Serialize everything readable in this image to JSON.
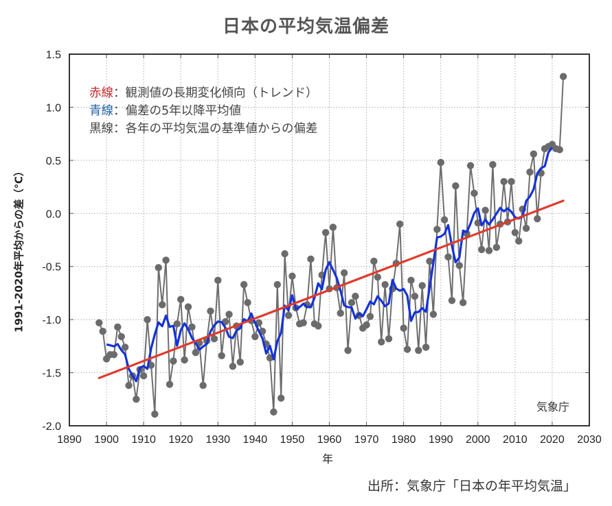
{
  "chart_data": {
    "type": "line",
    "title": "日本の平均気温偏差",
    "xlabel": "年",
    "ylabel": "1991-2020年平均からの差（℃）",
    "xlim": [
      1890,
      2030
    ],
    "ylim": [
      -2.0,
      1.5
    ],
    "x_ticks": [
      "1890",
      "1900",
      "1910",
      "1920",
      "1930",
      "1940",
      "1950",
      "1960",
      "1970",
      "1980",
      "1990",
      "2000",
      "2010",
      "2020",
      "2030"
    ],
    "y_ticks": [
      "1.5",
      "1.0",
      "0.5",
      "0.0",
      "-0.5",
      "-1.0",
      "-1.5",
      "-2.0"
    ],
    "grid": true,
    "legend": [
      {
        "key": "赤線",
        "text": "：観測値の長期変化傾向（トレンド）",
        "color": "#c0272d"
      },
      {
        "key": "青線",
        "text": "：偏差の5年以降平均値",
        "color": "#1f5fa8"
      },
      {
        "key": "黒線",
        "text": "：各年の平均気温の基準値からの偏差",
        "color": "#444444"
      }
    ],
    "legend_position": "top-left",
    "annotation": "気象庁",
    "series": [
      {
        "name": "各年の平均気温の基準値からの偏差",
        "color": "#6d6d6d",
        "marker_color": "#6b6b6b",
        "x": [
          1898,
          1899,
          1900,
          1901,
          1902,
          1903,
          1904,
          1905,
          1906,
          1907,
          1908,
          1909,
          1910,
          1911,
          1912,
          1913,
          1914,
          1915,
          1916,
          1917,
          1918,
          1919,
          1920,
          1921,
          1922,
          1923,
          1924,
          1925,
          1926,
          1927,
          1928,
          1929,
          1930,
          1931,
          1932,
          1933,
          1934,
          1935,
          1936,
          1937,
          1938,
          1939,
          1940,
          1941,
          1942,
          1943,
          1944,
          1945,
          1946,
          1947,
          1948,
          1949,
          1950,
          1951,
          1952,
          1953,
          1954,
          1955,
          1956,
          1957,
          1958,
          1959,
          1960,
          1961,
          1962,
          1963,
          1964,
          1965,
          1966,
          1967,
          1968,
          1969,
          1970,
          1971,
          1972,
          1973,
          1974,
          1975,
          1976,
          1977,
          1978,
          1979,
          1980,
          1981,
          1982,
          1983,
          1984,
          1985,
          1986,
          1987,
          1988,
          1989,
          1990,
          1991,
          1992,
          1993,
          1994,
          1995,
          1996,
          1997,
          1998,
          1999,
          2000,
          2001,
          2002,
          2003,
          2004,
          2005,
          2006,
          2007,
          2008,
          2009,
          2010,
          2011,
          2012,
          2013,
          2014,
          2015,
          2016,
          2017,
          2018,
          2019,
          2020,
          2021,
          2022,
          2023
        ],
        "values": [
          -1.03,
          -1.11,
          -1.37,
          -1.33,
          -1.33,
          -1.07,
          -1.16,
          -1.26,
          -1.62,
          -1.53,
          -1.75,
          -1.47,
          -1.53,
          -1.0,
          -1.43,
          -1.89,
          -0.51,
          -0.86,
          -0.44,
          -1.61,
          -1.39,
          -1.04,
          -0.81,
          -1.38,
          -0.88,
          -1.07,
          -1.31,
          -1.22,
          -1.62,
          -1.2,
          -0.92,
          -1.18,
          -0.63,
          -1.34,
          -1.02,
          -0.95,
          -1.44,
          -1.06,
          -1.4,
          -0.67,
          -0.84,
          -1.01,
          -1.16,
          -1.03,
          -1.11,
          -1.23,
          -1.36,
          -1.87,
          -0.67,
          -1.74,
          -0.38,
          -0.96,
          -0.59,
          -0.89,
          -1.04,
          -1.03,
          -0.86,
          -0.43,
          -1.04,
          -1.06,
          -0.58,
          -0.18,
          -0.71,
          -0.13,
          -0.7,
          -0.94,
          -0.56,
          -1.29,
          -0.84,
          -0.78,
          -0.96,
          -1.08,
          -1.05,
          -0.97,
          -0.45,
          -0.6,
          -1.21,
          -0.67,
          -1.18,
          -0.71,
          -0.47,
          -0.1,
          -1.08,
          -1.28,
          -0.63,
          -0.78,
          -1.29,
          -0.68,
          -1.26,
          -0.45,
          -0.95,
          -0.15,
          0.48,
          -0.06,
          -0.41,
          -0.82,
          0.26,
          -0.49,
          -0.84,
          -0.19,
          0.45,
          0.19,
          -0.09,
          -0.34,
          0.03,
          -0.35,
          0.46,
          -0.32,
          -0.1,
          0.3,
          -0.08,
          0.3,
          -0.18,
          -0.26,
          0.04,
          -0.14,
          0.39,
          0.56,
          -0.05,
          0.38,
          0.61,
          0.63,
          0.65,
          0.61,
          0.6,
          1.29
        ]
      },
      {
        "name": "偏差の5年移動平均値",
        "color": "#1433d9",
        "method": "centered 5-year running mean of annual series"
      },
      {
        "name": "長期変化傾向（トレンド）",
        "color": "#e03a2a",
        "method": "linear fit 1898-2023",
        "start": [
          1898,
          -1.55
        ],
        "end": [
          2023,
          0.12
        ]
      }
    ]
  },
  "source_note": "出所：気象庁「日本の年平均気温」"
}
